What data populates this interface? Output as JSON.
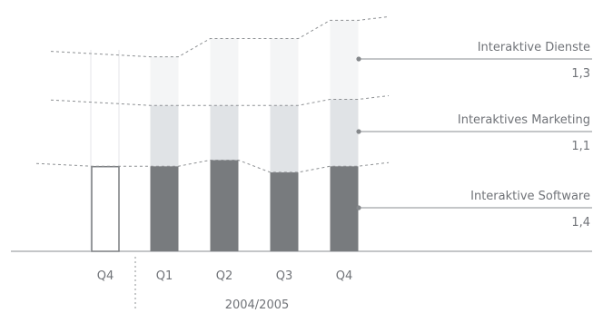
{
  "chart_data": {
    "type": "bar",
    "stacked": true,
    "categories": [
      "Q4",
      "Q1",
      "Q2",
      "Q3",
      "Q4"
    ],
    "group_label": "2004/2005",
    "series": [
      {
        "name": "Interaktive Software",
        "value_label": "1,4",
        "values": [
          1.4,
          1.4,
          1.5,
          1.3,
          1.4
        ],
        "color": "#787b7e"
      },
      {
        "name": "Interaktives Marketing",
        "value_label": "1,1",
        "values": [
          null,
          1.0,
          0.9,
          1.1,
          1.1
        ],
        "color": "#e0e3e6"
      },
      {
        "name": "Interaktive Dienste",
        "value_label": "1,3",
        "values": [
          null,
          0.8,
          1.1,
          1.1,
          1.3
        ],
        "color": "#f4f5f6"
      }
    ],
    "grid": false,
    "legend": "right",
    "colors": {
      "axis": "#8a8d90",
      "dashed": "#8d9093",
      "text": "#707378",
      "outline": "#7a7d80"
    }
  }
}
